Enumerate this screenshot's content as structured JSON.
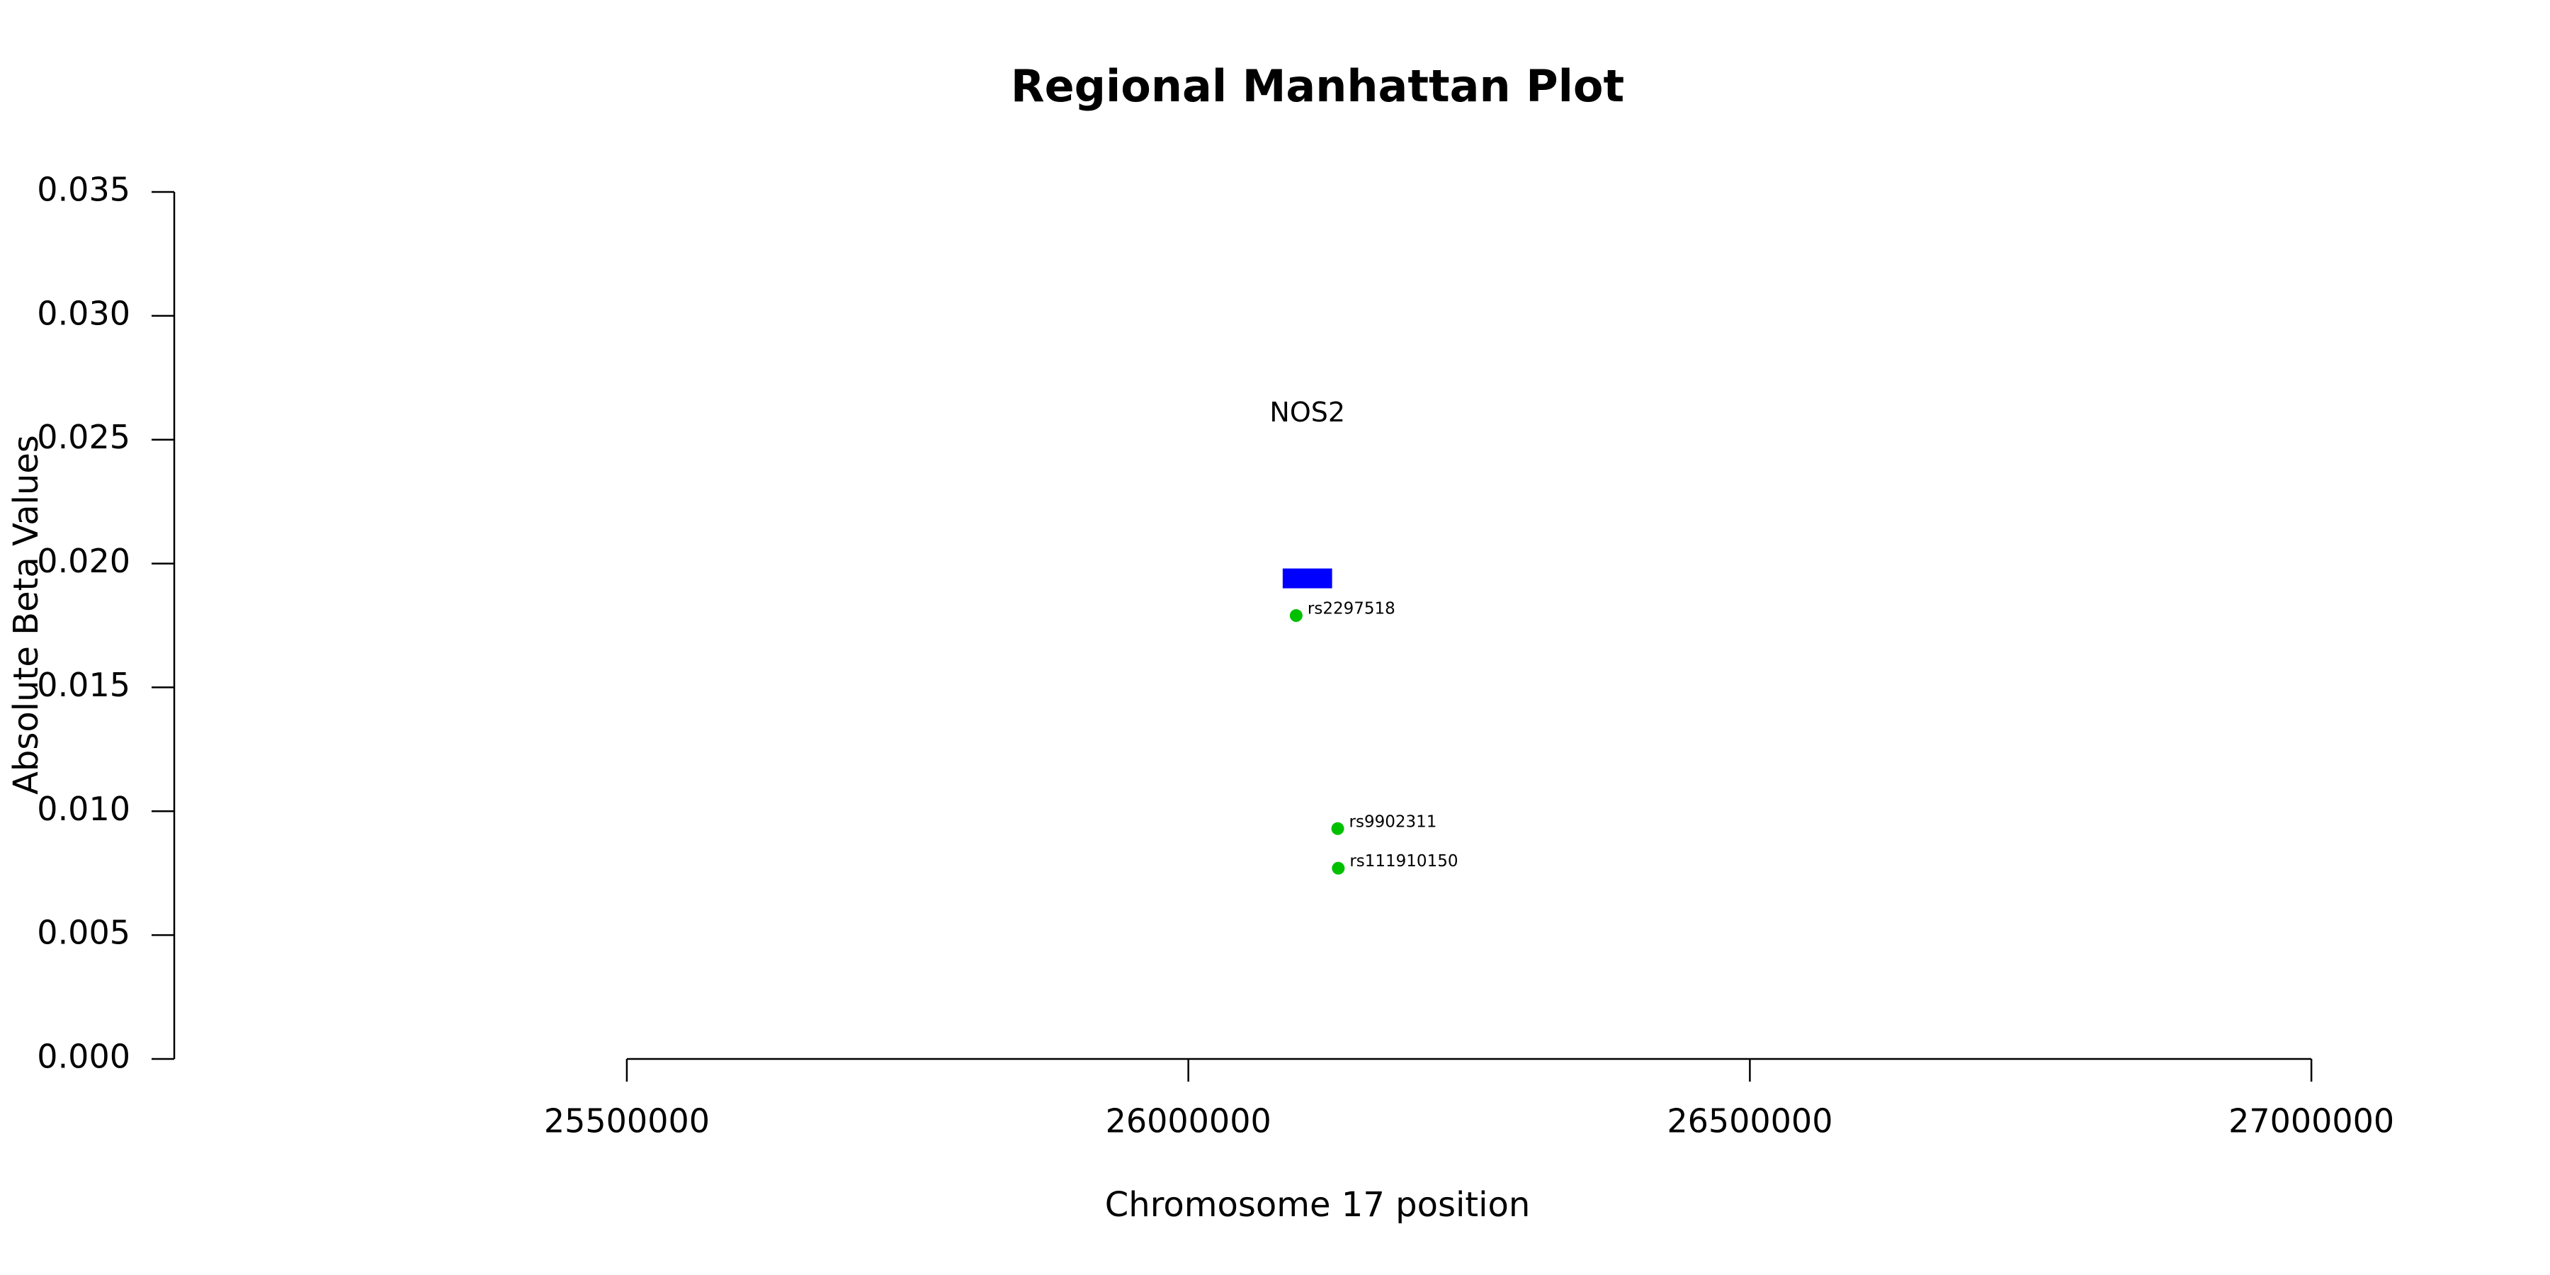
{
  "chart_data": {
    "type": "scatter",
    "title": "Regional Manhattan Plot",
    "x_label": "Chromosome 17 position",
    "y_label": "Absolute Beta Values",
    "x": [
      26096000,
      26133000,
      26133500
    ],
    "values": [
      0.0179,
      0.0093,
      0.0077
    ],
    "point_labels": [
      "rs2297518",
      "rs9902311",
      "rs111910150"
    ],
    "color": "#00c000",
    "genes": [
      {
        "label": "NOS2",
        "start": 26084000,
        "end": 26128000,
        "ymin": 0.019,
        "ymax": 0.0198,
        "color": "#0000ff"
      }
    ],
    "xlim": [
      25097000,
      27133000
    ],
    "xticks": [
      25500000,
      26000000,
      26500000,
      27000000
    ],
    "ylim": [
      0,
      0.035
    ],
    "yticks": [
      {
        "value": 0,
        "label": "0.000"
      },
      {
        "value": 0.005,
        "label": "0.005"
      },
      {
        "value": 0.01,
        "label": "0.010"
      },
      {
        "value": 0.015,
        "label": "0.015"
      },
      {
        "value": 0.02,
        "label": "0.020"
      },
      {
        "value": 0.025,
        "label": "0.025"
      },
      {
        "value": 0.03,
        "label": "0.030"
      },
      {
        "value": 0.035,
        "label": "0.035"
      }
    ]
  }
}
